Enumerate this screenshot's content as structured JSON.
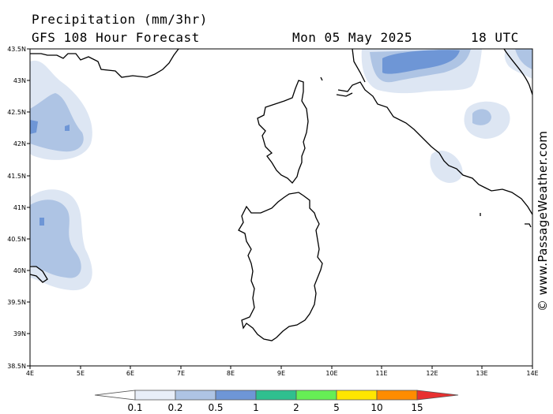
{
  "header": {
    "title": "Precipitation (mm/3hr)",
    "subtitle": "GFS 108 Hour Forecast",
    "date": "Mon 05 May 2025",
    "time": "18 UTC"
  },
  "credit": "© www.PassageWeather.com",
  "map": {
    "region": "Corsica and Sardinia",
    "lat_ticks": [
      "43.5N",
      "43N",
      "42.5N",
      "42N",
      "41.5N",
      "41N",
      "40.5N",
      "40N",
      "39.5N",
      "39N",
      "38.5N"
    ],
    "lon_ticks": [
      "4E",
      "5E",
      "6E",
      "7E",
      "8E",
      "9E",
      "10E",
      "11E",
      "12E",
      "13E",
      "14E"
    ]
  },
  "legend": {
    "labels": [
      "0.1",
      "0.2",
      "0.5",
      "1",
      "2",
      "5",
      "10",
      "15"
    ],
    "colors": [
      "#ffffff",
      "#e8eef8",
      "#aec4e4",
      "#6e96d6",
      "#2fbf8f",
      "#66ee55",
      "#ffe600",
      "#ff8c00",
      "#e83030"
    ]
  }
}
